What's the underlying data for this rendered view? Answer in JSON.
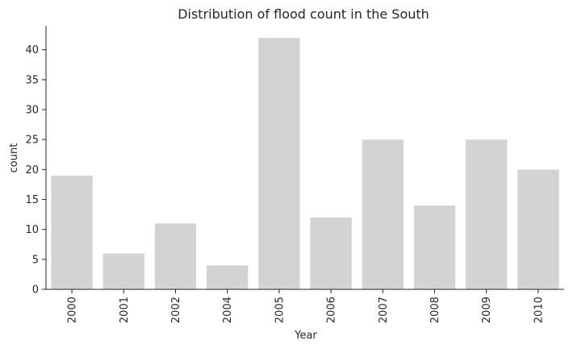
{
  "chart_data": {
    "type": "bar",
    "title": "Distribution of flood count in the South",
    "xlabel": "Year",
    "ylabel": "count",
    "categories": [
      "2000",
      "2001",
      "2002",
      "2004",
      "2005",
      "2006",
      "2007",
      "2008",
      "2009",
      "2010"
    ],
    "values": [
      19,
      6,
      11,
      4,
      42,
      12,
      25,
      14,
      25,
      20
    ],
    "ylim": [
      0,
      44
    ],
    "yticks": [
      0,
      5,
      10,
      15,
      20,
      25,
      30,
      35,
      40
    ],
    "grid": false,
    "legend": "none",
    "bar_color": "#d3d3d3"
  }
}
